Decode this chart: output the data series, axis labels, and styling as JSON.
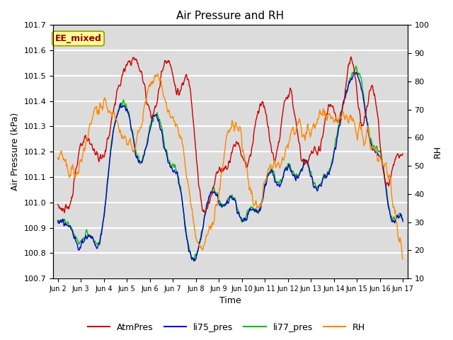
{
  "title": "Air Pressure and RH",
  "xlabel": "Time",
  "ylabel_left": "Air Pressure (kPa)",
  "ylabel_right": "RH",
  "ylim_left": [
    100.7,
    101.7
  ],
  "ylim_right": [
    10,
    100
  ],
  "yticks_left": [
    100.7,
    100.8,
    100.9,
    101.0,
    101.1,
    101.2,
    101.3,
    101.4,
    101.5,
    101.6,
    101.7
  ],
  "yticks_right": [
    10,
    20,
    30,
    40,
    50,
    60,
    70,
    80,
    90,
    100
  ],
  "xtick_labels": [
    "Jun 2",
    "Jun 3",
    "Jun 4",
    "Jun 5",
    "Jun 6",
    "Jun 7",
    "Jun 8",
    "Jun 9",
    "Jun 10",
    "Jun 11",
    "Jun 12",
    "Jun 13",
    "Jun 14",
    "Jun 15",
    "Jun 16",
    "Jun 17"
  ],
  "annotation_text": "EE_mixed",
  "annotation_bg": "#FFFF99",
  "annotation_border": "#999900",
  "colors": {
    "AtmPres": "#CC0000",
    "li75_pres": "#0000CC",
    "li77_pres": "#00BB00",
    "RH": "#FF8800"
  },
  "legend_labels": [
    "AtmPres",
    "li75_pres",
    "li77_pres",
    "RH"
  ],
  "bg_color": "#DCDCDC",
  "fig_bg": "#FFFFFF",
  "linewidth": 1.0,
  "grid_color": "#FFFFFF",
  "grid_lw": 1.5
}
